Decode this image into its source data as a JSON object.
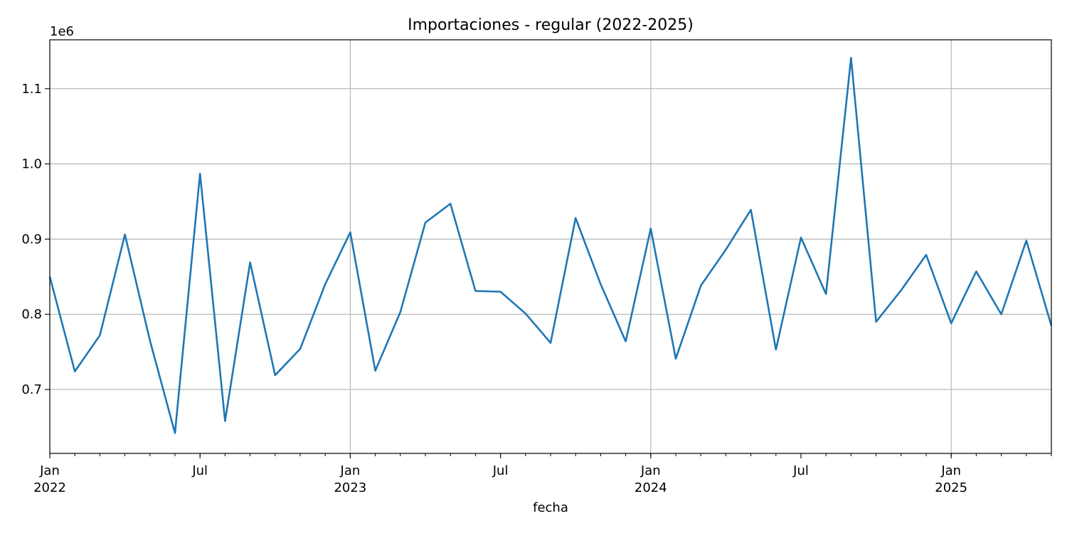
{
  "chart_data": {
    "type": "line",
    "title": "Importaciones - regular (2022-2025)",
    "xlabel": "fecha",
    "ylabel": "",
    "y_offset_label": "1e6",
    "ylim": [
      0.615,
      1.165
    ],
    "xlim": [
      "2022-01",
      "2025-05"
    ],
    "grid": true,
    "line_color": "#1f77b4",
    "y_ticks": [
      {
        "value": 0.7,
        "label": "0.7"
      },
      {
        "value": 0.8,
        "label": "0.8"
      },
      {
        "value": 0.9,
        "label": "0.9"
      },
      {
        "value": 1.0,
        "label": "1.0"
      },
      {
        "value": 1.1,
        "label": "1.1"
      }
    ],
    "x_major_ticks": [
      {
        "date": "2022-01",
        "label": "Jan",
        "year": "2022"
      },
      {
        "date": "2022-07",
        "label": "Jul",
        "year": ""
      },
      {
        "date": "2023-01",
        "label": "Jan",
        "year": "2023"
      },
      {
        "date": "2023-07",
        "label": "Jul",
        "year": ""
      },
      {
        "date": "2024-01",
        "label": "Jan",
        "year": "2024"
      },
      {
        "date": "2024-07",
        "label": "Jul",
        "year": ""
      },
      {
        "date": "2025-01",
        "label": "Jan",
        "year": "2025"
      }
    ],
    "series": [
      {
        "x": [
          "2022-01",
          "2022-02",
          "2022-03",
          "2022-04",
          "2022-05",
          "2022-06",
          "2022-07",
          "2022-08",
          "2022-09",
          "2022-10",
          "2022-11",
          "2022-12",
          "2023-01",
          "2023-02",
          "2023-03",
          "2023-04",
          "2023-05",
          "2023-06",
          "2023-07",
          "2023-08",
          "2023-09",
          "2023-10",
          "2023-11",
          "2023-12",
          "2024-01",
          "2024-02",
          "2024-03",
          "2024-04",
          "2024-05",
          "2024-06",
          "2024-07",
          "2024-08",
          "2024-09",
          "2024-10",
          "2024-11",
          "2024-12",
          "2025-01",
          "2025-02",
          "2025-03",
          "2025-04",
          "2025-05"
        ],
        "values": [
          0.85,
          0.724,
          0.772,
          0.906,
          0.765,
          0.642,
          0.987,
          0.658,
          0.869,
          0.719,
          0.754,
          0.84,
          0.909,
          0.725,
          0.803,
          0.922,
          0.947,
          0.831,
          0.83,
          0.801,
          0.762,
          0.928,
          0.84,
          0.764,
          0.914,
          0.741,
          0.838,
          0.886,
          0.939,
          0.753,
          0.902,
          0.827,
          1.141,
          0.79,
          0.832,
          0.879,
          0.788,
          0.857,
          0.8,
          0.898,
          0.785
        ]
      }
    ]
  }
}
